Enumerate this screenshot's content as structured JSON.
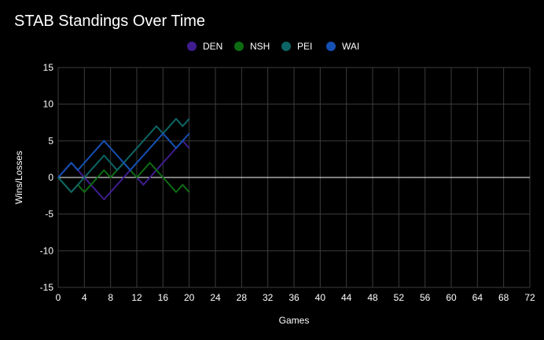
{
  "chart_data": {
    "type": "line",
    "title": "STAB Standings Over Time",
    "xlabel": "Games",
    "ylabel": "Wins/Losses",
    "xlim": [
      0,
      72
    ],
    "ylim": [
      -15,
      15
    ],
    "x_ticks": [
      0,
      4,
      8,
      12,
      16,
      20,
      24,
      28,
      32,
      36,
      40,
      44,
      48,
      52,
      56,
      60,
      64,
      68,
      72
    ],
    "y_ticks": [
      15,
      10,
      5,
      0,
      -5,
      -10,
      -15
    ],
    "grid": true,
    "legend_position": "top-center",
    "x": [
      0,
      1,
      2,
      3,
      4,
      5,
      6,
      7,
      8,
      9,
      10,
      11,
      12,
      13,
      14,
      15,
      16,
      17,
      18,
      19,
      20
    ],
    "series": [
      {
        "name": "DEN",
        "color": "#3f1d8f",
        "values": [
          0,
          1,
          2,
          1,
          0,
          -1,
          -2,
          -3,
          -2,
          -1,
          0,
          1,
          0,
          -1,
          0,
          1,
          2,
          3,
          4,
          5,
          4
        ]
      },
      {
        "name": "NSH",
        "color": "#0d6b12",
        "values": [
          0,
          -1,
          -2,
          -1,
          -2,
          -1,
          0,
          1,
          0,
          1,
          2,
          1,
          0,
          1,
          2,
          1,
          0,
          -1,
          -2,
          -1,
          -2
        ]
      },
      {
        "name": "PEI",
        "color": "#0e6464",
        "values": [
          0,
          -1,
          -2,
          -1,
          0,
          1,
          2,
          3,
          2,
          1,
          2,
          3,
          4,
          5,
          6,
          7,
          6,
          7,
          8,
          7,
          8
        ]
      },
      {
        "name": "WAI",
        "color": "#1550b4",
        "values": [
          0,
          1,
          2,
          1,
          2,
          3,
          4,
          5,
          4,
          3,
          2,
          1,
          2,
          3,
          4,
          5,
          6,
          5,
          4,
          5,
          6
        ]
      }
    ]
  }
}
